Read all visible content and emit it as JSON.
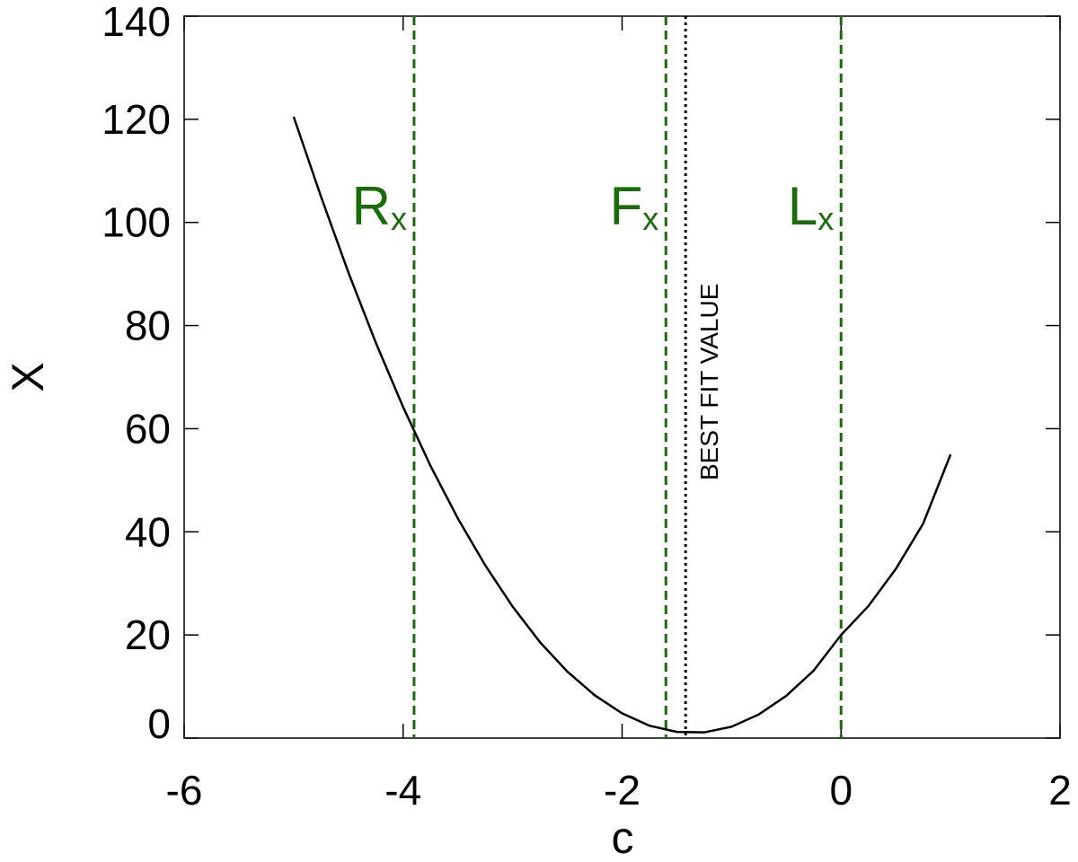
{
  "chart_data": {
    "type": "line",
    "x_label": "c",
    "y_label": "X",
    "xlim": [
      -6,
      2
    ],
    "xticks": [
      -6,
      -4,
      -2,
      0,
      2
    ],
    "ylim": [
      0,
      140
    ],
    "yticks": [
      0,
      20,
      40,
      60,
      80,
      100,
      120,
      140
    ],
    "series": [
      {
        "color": "#000000",
        "x": [
          -5,
          -4.75,
          -4.5,
          -4.25,
          -4,
          -3.75,
          -3.5,
          -3.25,
          -3,
          -2.75,
          -2.5,
          -2.25,
          -2,
          -1.75,
          -1.5,
          -1.25,
          -1,
          -0.75,
          -0.5,
          -0.25,
          0,
          0.25,
          0.5,
          0.75,
          1
        ],
        "values": [
          120.5,
          105,
          90.3,
          76.7,
          64.2,
          52.8,
          42.6,
          33.5,
          25.5,
          18.6,
          12.9,
          8.3,
          4.8,
          2.4,
          1.2,
          1.1,
          2.2,
          4.6,
          8.2,
          13.1,
          20,
          25.6,
          32.8,
          41.6,
          55
        ]
      }
    ],
    "vlines": [
      {
        "x": -3.9,
        "label": "R",
        "subscript": "x",
        "color": "#1a6b0a",
        "style": "dashed"
      },
      {
        "x": -1.6,
        "label": "F",
        "subscript": "x",
        "color": "#1a6b0a",
        "style": "dashed"
      },
      {
        "x": -1.42,
        "label": "BEST FIT VALUE",
        "color": "#000000",
        "style": "dotted"
      },
      {
        "x": 0,
        "label": "L",
        "subscript": "x",
        "color": "#1a6b0a",
        "style": "dashed"
      }
    ]
  }
}
